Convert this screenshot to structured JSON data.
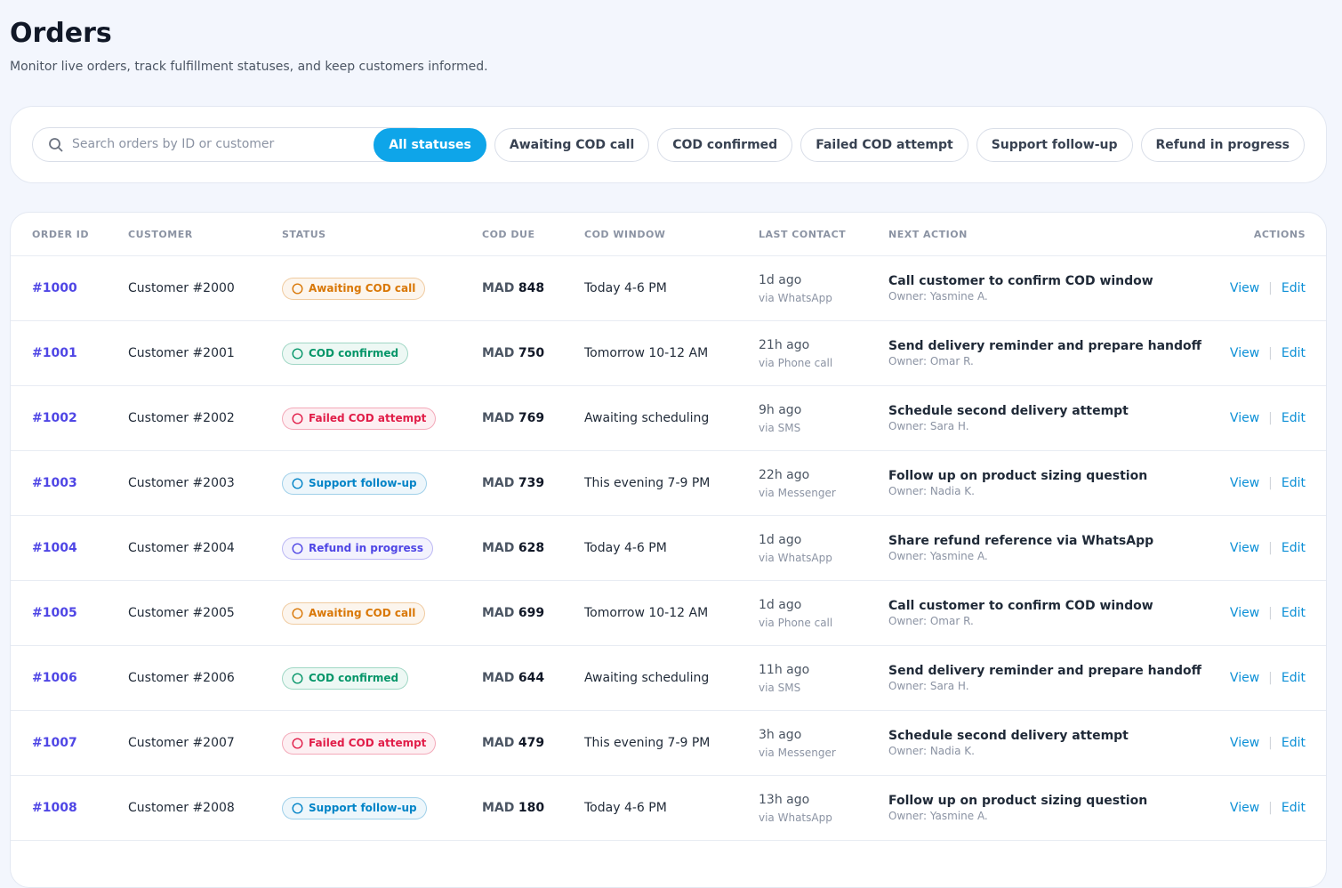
{
  "header": {
    "title": "Orders",
    "subtitle": "Monitor live orders, track fulfillment statuses, and keep customers informed."
  },
  "search": {
    "placeholder": "Search orders by ID or customer"
  },
  "filters": [
    "All statuses",
    "Awaiting COD call",
    "COD confirmed",
    "Failed COD attempt",
    "Support follow-up",
    "Refund in progress"
  ],
  "table": {
    "columns": [
      "ORDER ID",
      "CUSTOMER",
      "STATUS",
      "COD DUE",
      "COD WINDOW",
      "LAST CONTACT",
      "NEXT ACTION",
      "ACTIONS"
    ],
    "currency": "MAD",
    "row_actions": [
      "View",
      "Edit"
    ],
    "rows": [
      {
        "id": "#1000",
        "customer": "Customer #2000",
        "status": "Awaiting COD call",
        "status_color": "#d97706",
        "amount": "848",
        "window": "Today 4-6 PM",
        "contact": "1d ago",
        "channel": "via WhatsApp",
        "action": "Call customer to confirm COD window",
        "owner": "Owner: Yasmine A."
      },
      {
        "id": "#1001",
        "customer": "Customer #2001",
        "status": "COD confirmed",
        "status_color": "#059669",
        "amount": "750",
        "window": "Tomorrow 10-12 AM",
        "contact": "21h ago",
        "channel": "via Phone call",
        "action": "Send delivery reminder and prepare handoff",
        "owner": "Owner: Omar R."
      },
      {
        "id": "#1002",
        "customer": "Customer #2002",
        "status": "Failed COD attempt",
        "status_color": "#e11d48",
        "amount": "769",
        "window": "Awaiting scheduling",
        "contact": "9h ago",
        "channel": "via SMS",
        "action": "Schedule second delivery attempt",
        "owner": "Owner: Sara H."
      },
      {
        "id": "#1003",
        "customer": "Customer #2003",
        "status": "Support follow-up",
        "status_color": "#0284c7",
        "amount": "739",
        "window": "This evening 7-9 PM",
        "contact": "22h ago",
        "channel": "via Messenger",
        "action": "Follow up on product sizing question",
        "owner": "Owner: Nadia K."
      },
      {
        "id": "#1004",
        "customer": "Customer #2004",
        "status": "Refund in progress",
        "status_color": "#4f46e5",
        "amount": "628",
        "window": "Today 4-6 PM",
        "contact": "1d ago",
        "channel": "via WhatsApp",
        "action": "Share refund reference via WhatsApp",
        "owner": "Owner: Yasmine A."
      },
      {
        "id": "#1005",
        "customer": "Customer #2005",
        "status": "Awaiting COD call",
        "status_color": "#d97706",
        "amount": "699",
        "window": "Tomorrow 10-12 AM",
        "contact": "1d ago",
        "channel": "via Phone call",
        "action": "Call customer to confirm COD window",
        "owner": "Owner: Omar R."
      },
      {
        "id": "#1006",
        "customer": "Customer #2006",
        "status": "COD confirmed",
        "status_color": "#059669",
        "amount": "644",
        "window": "Awaiting scheduling",
        "contact": "11h ago",
        "channel": "via SMS",
        "action": "Send delivery reminder and prepare handoff",
        "owner": "Owner: Sara H."
      },
      {
        "id": "#1007",
        "customer": "Customer #2007",
        "status": "Failed COD attempt",
        "status_color": "#e11d48",
        "amount": "479",
        "window": "This evening 7-9 PM",
        "contact": "3h ago",
        "channel": "via Messenger",
        "action": "Schedule second delivery attempt",
        "owner": "Owner: Nadia K."
      },
      {
        "id": "#1008",
        "customer": "Customer #2008",
        "status": "Support follow-up",
        "status_color": "#0284c7",
        "amount": "180",
        "window": "Today 4-6 PM",
        "contact": "13h ago",
        "channel": "via WhatsApp",
        "action": "Follow up on product sizing question",
        "owner": "Owner: Yasmine A."
      }
    ]
  }
}
